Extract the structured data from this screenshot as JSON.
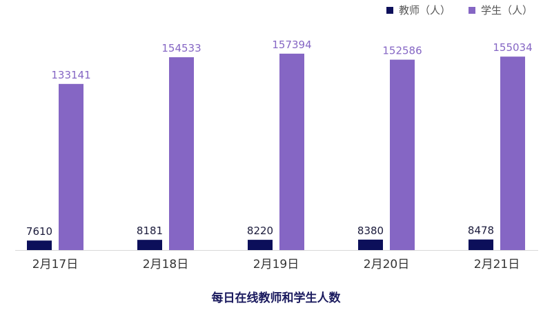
{
  "chart_data": {
    "type": "bar",
    "title": "每日在线教师和学生人数",
    "categories": [
      "2月17日",
      "2月18日",
      "2月19日",
      "2月20日",
      "2月21日"
    ],
    "series": [
      {
        "name": "教师（人）",
        "color": "#0c0f5a",
        "values": [
          7610,
          8181,
          8220,
          8380,
          8478
        ]
      },
      {
        "name": "学生（人）",
        "color": "#8566c4",
        "values": [
          133141,
          154533,
          157394,
          152586,
          155034
        ]
      }
    ],
    "ylim": [
      0,
      175000
    ],
    "grid": false,
    "legend_position": "top-right",
    "label_colors": {
      "teacher": "#1a1a3a",
      "student": "#8566c4",
      "axis": "#333333"
    }
  }
}
